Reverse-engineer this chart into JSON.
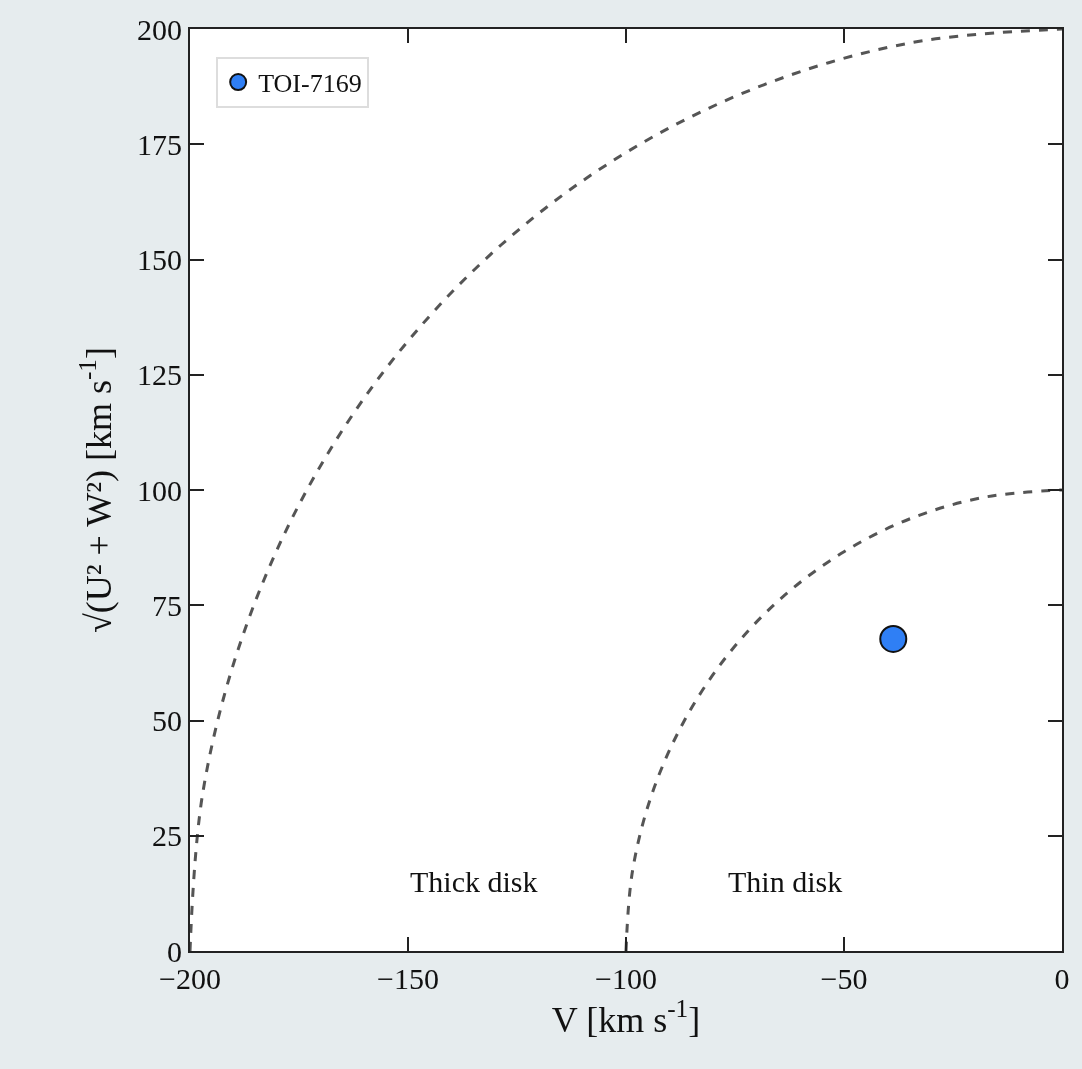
{
  "chart_data": {
    "type": "scatter",
    "xlabel": "V [km s$^{-1}$]",
    "ylabel": "√(U² + W²) [km s$^{-1}$]",
    "series": [
      {
        "name": "TOI-7169",
        "color": "#2f7ff5",
        "x": [
          -38.7
        ],
        "values": [
          67.7
        ],
        "marker": "circle"
      },
      {
        "type": "line",
        "color": "#555555",
        "line_style": "dashed",
        "marker": "none",
        "x": [
          -100,
          -98.5,
          -94,
          -86.6,
          -76.6,
          -64.3,
          -50,
          -34.2,
          -17.4,
          0
        ],
        "values": [
          0,
          17.4,
          34.2,
          50,
          64.3,
          76.6,
          86.6,
          94,
          98.5,
          100
        ]
      },
      {
        "type": "line",
        "color": "#555555",
        "line_style": "dashed",
        "marker": "none",
        "x": [
          -200,
          -197,
          -187.9,
          -173.2,
          -153.2,
          -128.6,
          -100,
          -68.4,
          -34.7,
          0
        ],
        "values": [
          0,
          34.7,
          68.4,
          100,
          128.6,
          153.2,
          173.2,
          187.9,
          197,
          200
        ]
      }
    ],
    "annotations": [
      "Thick disk",
      "Thin disk"
    ],
    "xlim": [
      -200,
      0
    ],
    "xticks": [
      -200,
      -150,
      -100,
      -50,
      0
    ],
    "ylim": [
      0,
      200
    ],
    "yticks": [
      0,
      25,
      50,
      75,
      100,
      125,
      150,
      175,
      200
    ],
    "grid": false,
    "legend": "top left"
  }
}
